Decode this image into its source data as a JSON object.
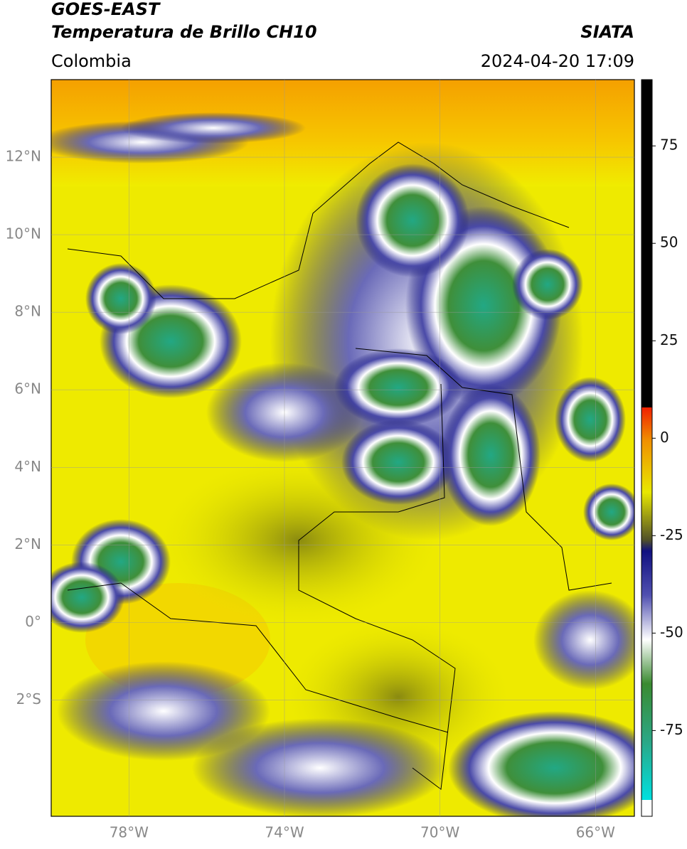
{
  "header": {
    "satellite": "GOES-EAST",
    "product": "Temperatura de Brillo CH10",
    "region": "Colombia",
    "source": "SIATA",
    "datetime": "2024-04-20 17:09"
  },
  "map": {
    "xlim": [
      -80,
      -65
    ],
    "ylim": [
      -5,
      14
    ],
    "lat_ticks": [
      {
        "value": 12,
        "label": "12°N"
      },
      {
        "value": 10,
        "label": "10°N"
      },
      {
        "value": 8,
        "label": "8°N"
      },
      {
        "value": 6,
        "label": "6°N"
      },
      {
        "value": 4,
        "label": "4°N"
      },
      {
        "value": 2,
        "label": "2°N"
      },
      {
        "value": 0,
        "label": "0°"
      },
      {
        "value": -2,
        "label": "2°S"
      }
    ],
    "lon_ticks": [
      {
        "value": -78,
        "label": "78°W"
      },
      {
        "value": -74,
        "label": "74°W"
      },
      {
        "value": -70,
        "label": "70°W"
      },
      {
        "value": -66,
        "label": "66°W"
      }
    ],
    "grid": true
  },
  "colorbar": {
    "lim": [
      -97,
      92
    ],
    "ticks": [
      75,
      50,
      25,
      0,
      -25,
      -50,
      -75
    ]
  }
}
